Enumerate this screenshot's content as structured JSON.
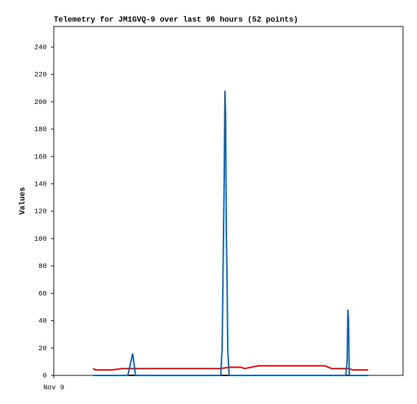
{
  "chart_data": {
    "type": "line",
    "title": "Telemetry for JM1GVQ-9 over last 96 hours (52 points)",
    "ylabel": "Values",
    "xlim": [
      0,
      100
    ],
    "xticks": [
      {
        "value": 0,
        "label": "Nov 9"
      }
    ],
    "ylim": [
      0,
      255
    ],
    "yticks": [
      0,
      20,
      40,
      60,
      80,
      100,
      120,
      140,
      160,
      180,
      200,
      220,
      240
    ],
    "series": [
      {
        "color": "#000000",
        "x": [
          11.2,
          90
        ],
        "values": [
          0,
          0
        ]
      },
      {
        "color": "#e00000",
        "x": [
          11.2,
          12,
          16.6,
          19.6,
          47.6,
          50.6,
          53.6,
          54.6,
          58.6,
          77.6,
          79.6,
          84.6,
          85.6,
          90
        ],
        "values": [
          5,
          4,
          4,
          5,
          5,
          6,
          6,
          5,
          7,
          7,
          5,
          5,
          4,
          4
        ]
      },
      {
        "color": "#0060c0",
        "x": [
          11.2,
          21.2,
          22.6,
          23.4,
          47.8,
          48.2,
          48.4,
          48.6,
          48.8,
          49,
          49.2,
          49.4,
          49.6,
          49.8,
          50.2,
          83.6,
          84,
          84.2,
          84.4,
          84.6,
          90
        ],
        "values": [
          0,
          0,
          16,
          0,
          0,
          20,
          60,
          105,
          145,
          208,
          190,
          105,
          75,
          20,
          0,
          0,
          10,
          48,
          40,
          0,
          0
        ]
      }
    ]
  }
}
